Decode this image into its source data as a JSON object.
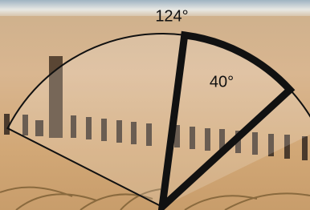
{
  "angles": [
    {
      "label": "124°"
    },
    {
      "label": "40°"
    }
  ]
}
